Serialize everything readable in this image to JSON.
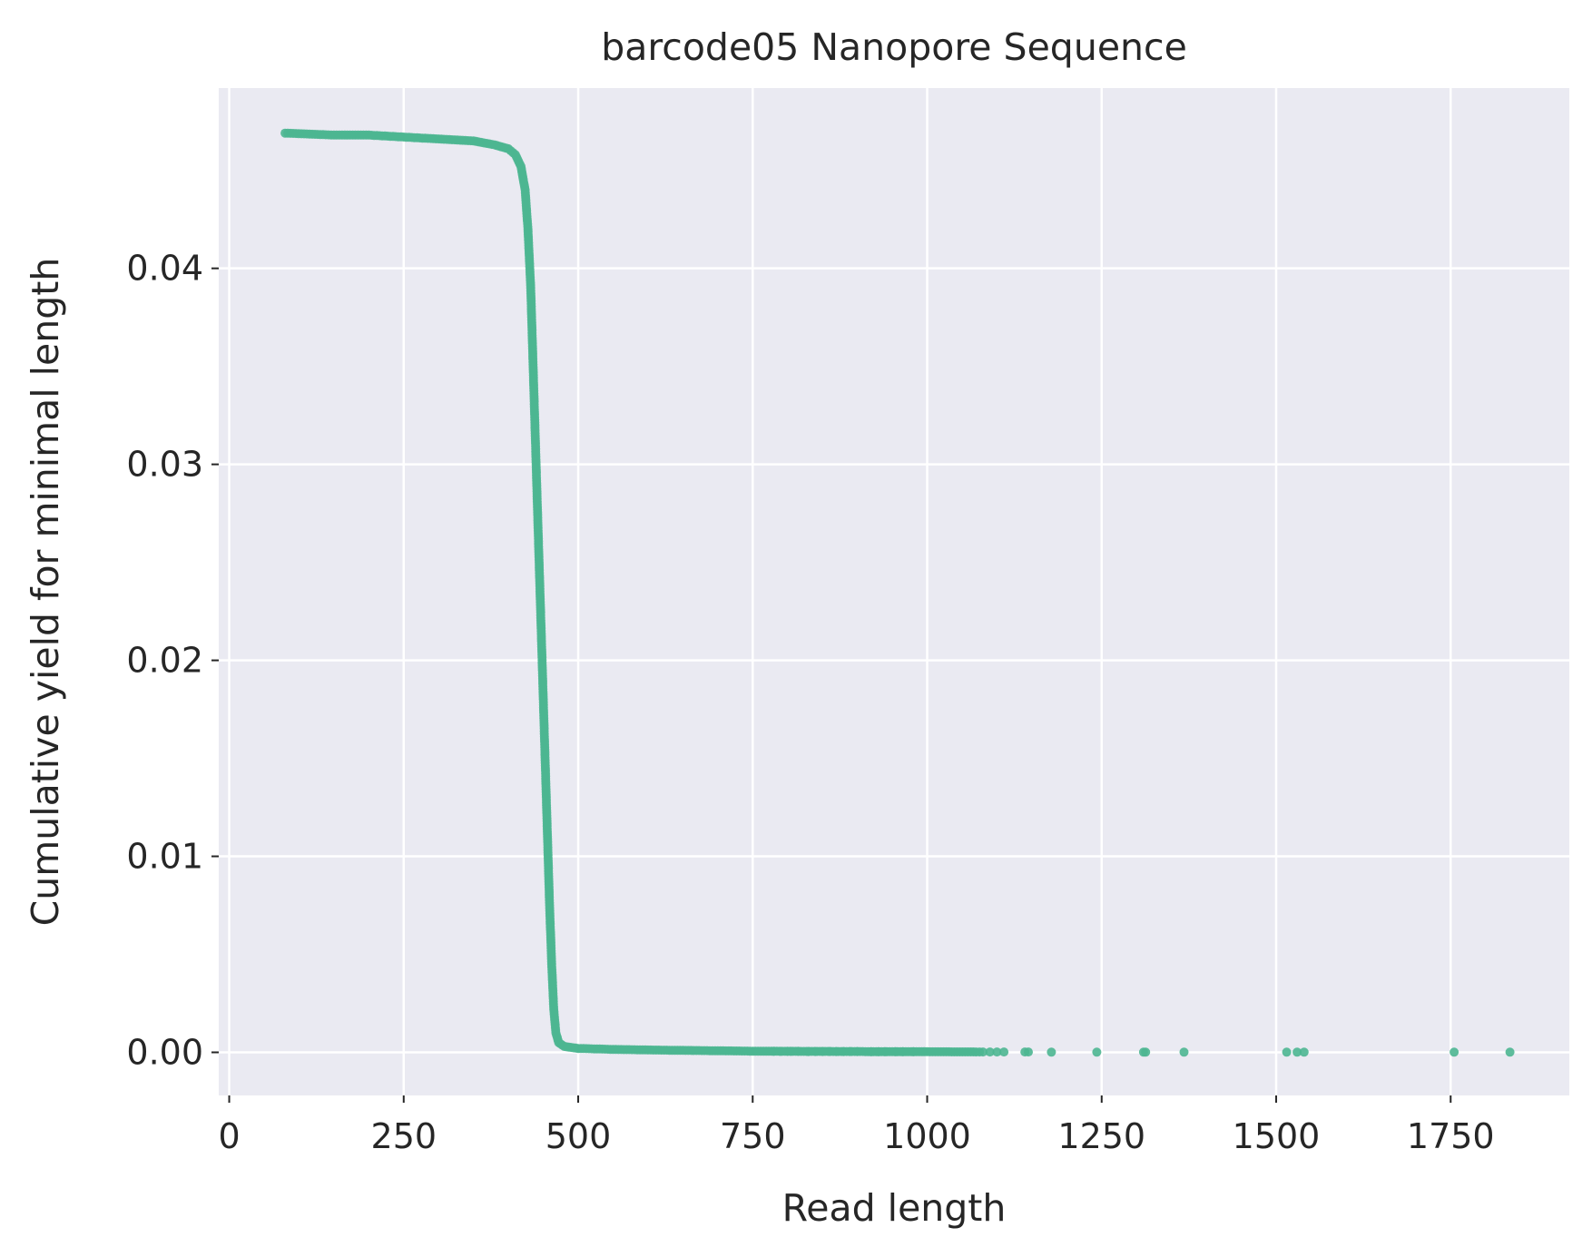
{
  "chart_data": {
    "type": "scatter",
    "title": "barcode05 Nanopore Sequence",
    "xlabel": "Read length",
    "ylabel": "Cumulative yield for minimal length",
    "xlim": [
      -15,
      1920
    ],
    "ylim": [
      -0.0022,
      0.0492
    ],
    "xticks": [
      0,
      250,
      500,
      750,
      1000,
      1250,
      1500,
      1750
    ],
    "yticks": [
      0.0,
      0.01,
      0.02,
      0.03,
      0.04
    ],
    "xtick_labels": [
      "0",
      "250",
      "500",
      "750",
      "1000",
      "1250",
      "1500",
      "1750"
    ],
    "ytick_labels": [
      "0.00",
      "0.01",
      "0.02",
      "0.03",
      "0.04"
    ],
    "grid": true,
    "legend": "none",
    "colors": {
      "points": "#4db691",
      "background": "#eaeaf2",
      "grid": "#ffffff",
      "text": "#262626"
    },
    "curve": [
      [
        80,
        0.0469
      ],
      [
        150,
        0.0468
      ],
      [
        200,
        0.0468
      ],
      [
        250,
        0.0467
      ],
      [
        300,
        0.0466
      ],
      [
        350,
        0.0465
      ],
      [
        380,
        0.0463
      ],
      [
        400,
        0.0461
      ],
      [
        410,
        0.0458
      ],
      [
        418,
        0.0452
      ],
      [
        424,
        0.044
      ],
      [
        428,
        0.042
      ],
      [
        432,
        0.039
      ],
      [
        435,
        0.0355
      ],
      [
        438,
        0.032
      ],
      [
        441,
        0.0285
      ],
      [
        444,
        0.025
      ],
      [
        447,
        0.0215
      ],
      [
        450,
        0.018
      ],
      [
        453,
        0.0145
      ],
      [
        456,
        0.011
      ],
      [
        459,
        0.0075
      ],
      [
        462,
        0.0045
      ],
      [
        465,
        0.0022
      ],
      [
        468,
        0.001
      ],
      [
        472,
        0.0005
      ],
      [
        480,
        0.0003
      ],
      [
        500,
        0.0002
      ],
      [
        550,
        0.00015
      ],
      [
        600,
        0.00012
      ],
      [
        650,
        0.0001
      ],
      [
        700,
        8e-05
      ],
      [
        750,
        6e-05
      ],
      [
        800,
        5e-05
      ],
      [
        900,
        4e-05
      ],
      [
        1000,
        3e-05
      ],
      [
        1070,
        2e-05
      ]
    ],
    "scattered_points": [
      [
        780,
        5e-05
      ],
      [
        790,
        5e-05
      ],
      [
        800,
        5e-05
      ],
      [
        805,
        5e-05
      ],
      [
        815,
        5e-05
      ],
      [
        830,
        4e-05
      ],
      [
        840,
        4e-05
      ],
      [
        850,
        4e-05
      ],
      [
        860,
        4e-05
      ],
      [
        870,
        4e-05
      ],
      [
        880,
        4e-05
      ],
      [
        890,
        4e-05
      ],
      [
        900,
        4e-05
      ],
      [
        920,
        3e-05
      ],
      [
        930,
        3e-05
      ],
      [
        940,
        3e-05
      ],
      [
        955,
        3e-05
      ],
      [
        965,
        3e-05
      ],
      [
        980,
        3e-05
      ],
      [
        1075,
        2e-05
      ],
      [
        1080,
        2e-05
      ],
      [
        1090,
        2e-05
      ],
      [
        1100,
        2e-05
      ],
      [
        1110,
        2e-05
      ],
      [
        1140,
        2e-05
      ],
      [
        1145,
        2e-05
      ],
      [
        1178,
        1e-05
      ],
      [
        1243,
        1e-05
      ],
      [
        1310,
        1e-05
      ],
      [
        1313,
        1e-05
      ],
      [
        1368,
        1e-05
      ],
      [
        1515,
        1e-05
      ],
      [
        1530,
        1e-05
      ],
      [
        1540,
        1e-05
      ],
      [
        1755,
        1e-05
      ],
      [
        1835,
        1e-05
      ]
    ]
  }
}
